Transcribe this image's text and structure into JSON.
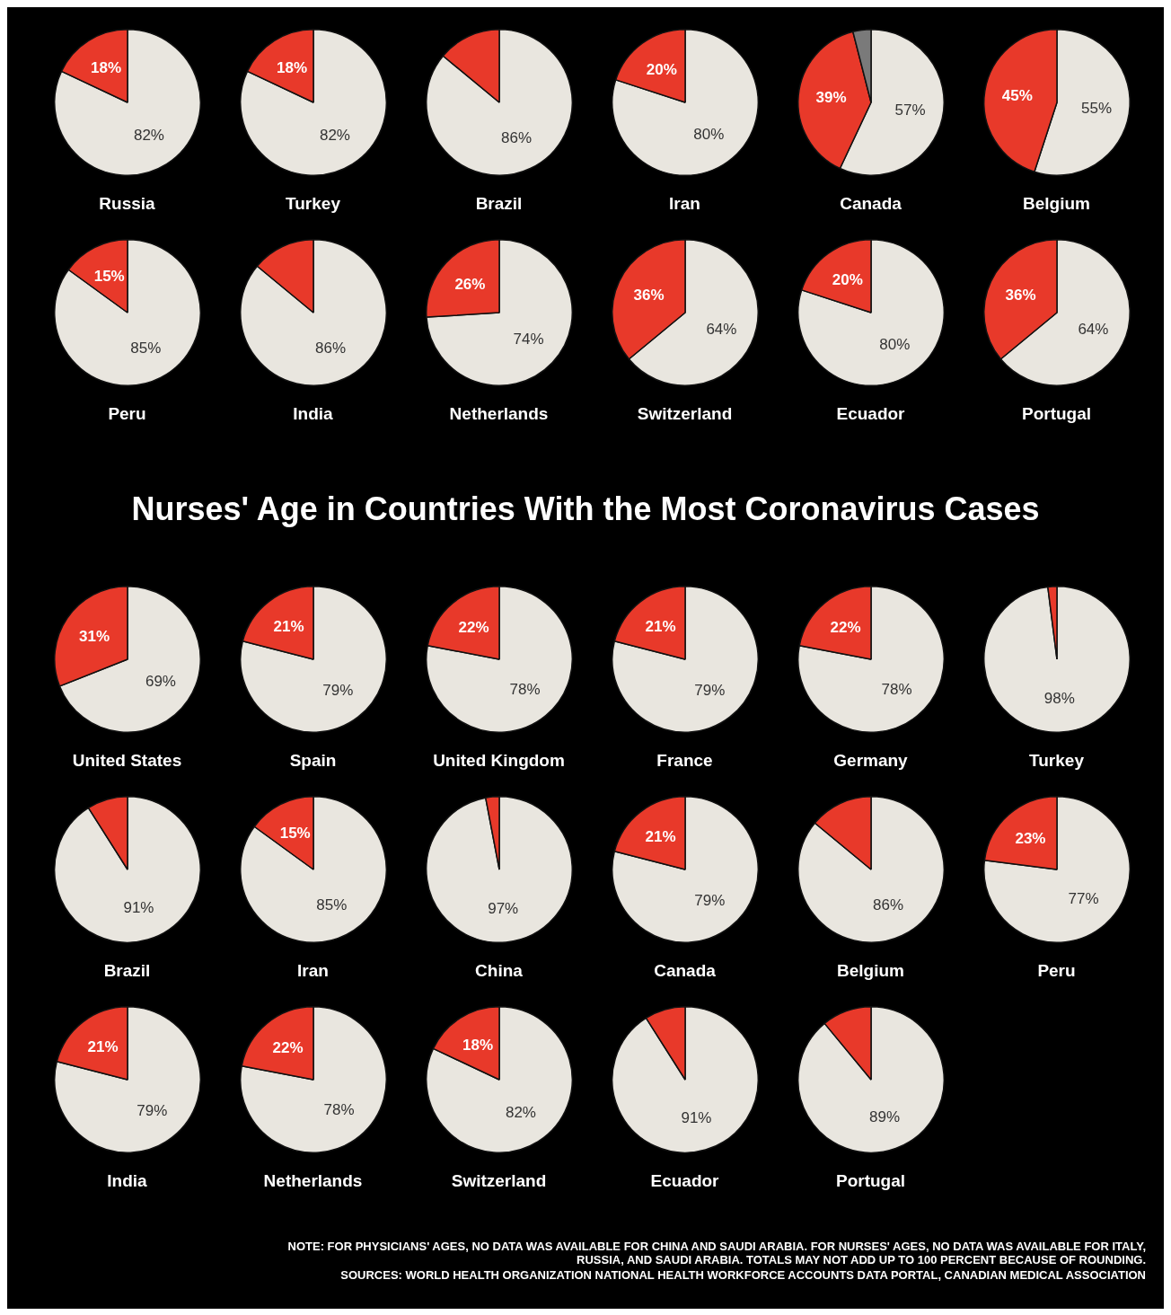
{
  "chart_data": [
    {
      "type": "pie",
      "title": "Russia",
      "categories": [
        null,
        null
      ],
      "values": [
        82,
        18
      ],
      "colors": [
        "#e9e6df",
        "#e8392a"
      ],
      "value_labels": [
        "82%",
        "18%"
      ]
    },
    {
      "type": "pie",
      "title": "Turkey",
      "categories": [
        null,
        null
      ],
      "values": [
        82,
        18
      ],
      "colors": [
        "#e9e6df",
        "#e8392a"
      ],
      "value_labels": [
        "82%",
        "18%"
      ]
    },
    {
      "type": "pie",
      "title": "Brazil",
      "categories": [
        null,
        null
      ],
      "values": [
        86,
        14
      ],
      "colors": [
        "#e9e6df",
        "#e8392a"
      ],
      "value_labels": [
        "86%",
        null
      ]
    },
    {
      "type": "pie",
      "title": "Iran",
      "categories": [
        null,
        null
      ],
      "values": [
        80,
        20
      ],
      "colors": [
        "#e9e6df",
        "#e8392a"
      ],
      "value_labels": [
        "80%",
        "20%"
      ]
    },
    {
      "type": "pie",
      "title": "Canada",
      "categories": [
        null,
        null,
        null
      ],
      "values": [
        57,
        39,
        4
      ],
      "colors": [
        "#e9e6df",
        "#e8392a",
        "#7a7a7a"
      ],
      "value_labels": [
        "57%",
        "39%",
        null
      ]
    },
    {
      "type": "pie",
      "title": "Belgium",
      "categories": [
        null,
        null
      ],
      "values": [
        55,
        45
      ],
      "colors": [
        "#e9e6df",
        "#e8392a"
      ],
      "value_labels": [
        "55%",
        "45%"
      ]
    },
    {
      "type": "pie",
      "title": "Peru",
      "categories": [
        null,
        null
      ],
      "values": [
        85,
        15
      ],
      "colors": [
        "#e9e6df",
        "#e8392a"
      ],
      "value_labels": [
        "85%",
        "15%"
      ]
    },
    {
      "type": "pie",
      "title": "India",
      "categories": [
        null,
        null
      ],
      "values": [
        86,
        14
      ],
      "colors": [
        "#e9e6df",
        "#e8392a"
      ],
      "value_labels": [
        "86%",
        null
      ]
    },
    {
      "type": "pie",
      "title": "Netherlands",
      "categories": [
        null,
        null
      ],
      "values": [
        74,
        26
      ],
      "colors": [
        "#e9e6df",
        "#e8392a"
      ],
      "value_labels": [
        "74%",
        "26%"
      ]
    },
    {
      "type": "pie",
      "title": "Switzerland",
      "categories": [
        null,
        null
      ],
      "values": [
        64,
        36
      ],
      "colors": [
        "#e9e6df",
        "#e8392a"
      ],
      "value_labels": [
        "64%",
        "36%"
      ]
    },
    {
      "type": "pie",
      "title": "Ecuador",
      "categories": [
        null,
        null
      ],
      "values": [
        80,
        20
      ],
      "colors": [
        "#e9e6df",
        "#e8392a"
      ],
      "value_labels": [
        "80%",
        "20%"
      ]
    },
    {
      "type": "pie",
      "title": "Portugal",
      "categories": [
        null,
        null
      ],
      "values": [
        64,
        36
      ],
      "colors": [
        "#e9e6df",
        "#e8392a"
      ],
      "value_labels": [
        "64%",
        "36%"
      ]
    },
    {
      "type": "other",
      "title": "Nurses' Age in Countries With the Most Coronavirus Cases"
    },
    {
      "type": "pie",
      "title": "United States",
      "categories": [
        null,
        null
      ],
      "values": [
        69,
        31
      ],
      "colors": [
        "#e9e6df",
        "#e8392a"
      ],
      "value_labels": [
        "69%",
        "31%"
      ]
    },
    {
      "type": "pie",
      "title": "Spain",
      "categories": [
        null,
        null
      ],
      "values": [
        79,
        21
      ],
      "colors": [
        "#e9e6df",
        "#e8392a"
      ],
      "value_labels": [
        "79%",
        "21%"
      ]
    },
    {
      "type": "pie",
      "title": "United Kingdom",
      "categories": [
        null,
        null
      ],
      "values": [
        78,
        22
      ],
      "colors": [
        "#e9e6df",
        "#e8392a"
      ],
      "value_labels": [
        "78%",
        "22%"
      ]
    },
    {
      "type": "pie",
      "title": "France",
      "categories": [
        null,
        null
      ],
      "values": [
        79,
        21
      ],
      "colors": [
        "#e9e6df",
        "#e8392a"
      ],
      "value_labels": [
        "79%",
        "21%"
      ]
    },
    {
      "type": "pie",
      "title": "Germany",
      "categories": [
        null,
        null
      ],
      "values": [
        78,
        22
      ],
      "colors": [
        "#e9e6df",
        "#e8392a"
      ],
      "value_labels": [
        "78%",
        "22%"
      ]
    },
    {
      "type": "pie",
      "title": "Turkey",
      "categories": [
        null,
        null
      ],
      "values": [
        98,
        2
      ],
      "colors": [
        "#e9e6df",
        "#e8392a"
      ],
      "value_labels": [
        "98%",
        null
      ]
    },
    {
      "type": "pie",
      "title": "Brazil",
      "categories": [
        null,
        null
      ],
      "values": [
        91,
        9
      ],
      "colors": [
        "#e9e6df",
        "#e8392a"
      ],
      "value_labels": [
        "91%",
        null
      ]
    },
    {
      "type": "pie",
      "title": "Iran",
      "categories": [
        null,
        null
      ],
      "values": [
        85,
        15
      ],
      "colors": [
        "#e9e6df",
        "#e8392a"
      ],
      "value_labels": [
        "85%",
        "15%"
      ]
    },
    {
      "type": "pie",
      "title": "China",
      "categories": [
        null,
        null
      ],
      "values": [
        97,
        3
      ],
      "colors": [
        "#e9e6df",
        "#e8392a"
      ],
      "value_labels": [
        "97%",
        null
      ]
    },
    {
      "type": "pie",
      "title": "Canada",
      "categories": [
        null,
        null
      ],
      "values": [
        79,
        21
      ],
      "colors": [
        "#e9e6df",
        "#e8392a"
      ],
      "value_labels": [
        "79%",
        "21%"
      ]
    },
    {
      "type": "pie",
      "title": "Belgium",
      "categories": [
        null,
        null
      ],
      "values": [
        86,
        14
      ],
      "colors": [
        "#e9e6df",
        "#e8392a"
      ],
      "value_labels": [
        "86%",
        null
      ]
    },
    {
      "type": "pie",
      "title": "Peru",
      "categories": [
        null,
        null
      ],
      "values": [
        77,
        23
      ],
      "colors": [
        "#e9e6df",
        "#e8392a"
      ],
      "value_labels": [
        "77%",
        "23%"
      ]
    },
    {
      "type": "pie",
      "title": "India",
      "categories": [
        null,
        null
      ],
      "values": [
        79,
        21
      ],
      "colors": [
        "#e9e6df",
        "#e8392a"
      ],
      "value_labels": [
        "79%",
        "21%"
      ]
    },
    {
      "type": "pie",
      "title": "Netherlands",
      "categories": [
        null,
        null
      ],
      "values": [
        78,
        22
      ],
      "colors": [
        "#e9e6df",
        "#e8392a"
      ],
      "value_labels": [
        "78%",
        "22%"
      ]
    },
    {
      "type": "pie",
      "title": "Switzerland",
      "categories": [
        null,
        null
      ],
      "values": [
        82,
        18
      ],
      "colors": [
        "#e9e6df",
        "#e8392a"
      ],
      "value_labels": [
        "82%",
        "18%"
      ]
    },
    {
      "type": "pie",
      "title": "Ecuador",
      "categories": [
        null,
        null
      ],
      "values": [
        91,
        9
      ],
      "colors": [
        "#e9e6df",
        "#e8392a"
      ],
      "value_labels": [
        "91%",
        null
      ]
    },
    {
      "type": "pie",
      "title": "Portugal",
      "categories": [
        null,
        null
      ],
      "values": [
        89,
        11
      ],
      "colors": [
        "#e9e6df",
        "#e8392a"
      ],
      "value_labels": [
        "89%",
        null
      ]
    },
    {
      "type": "other",
      "annotations": [
        "NOTE: FOR PHYSICIANS' AGES, NO DATA WAS AVAILABLE FOR CHINA AND SAUDI ARABIA. FOR NURSES' AGES, NO DATA WAS AVAILABLE FOR ITALY, RUSSIA, AND SAUDI ARABIA. TOTALS MAY NOT ADD UP TO 100 PERCENT BECAUSE OF ROUNDING.",
        "SOURCES: WORLD HEALTH ORGANIZATION NATIONAL HEALTH WORKFORCE ACCOUNTS DATA PORTAL, CANADIAN MEDICAL ASSOCIATION"
      ]
    }
  ]
}
